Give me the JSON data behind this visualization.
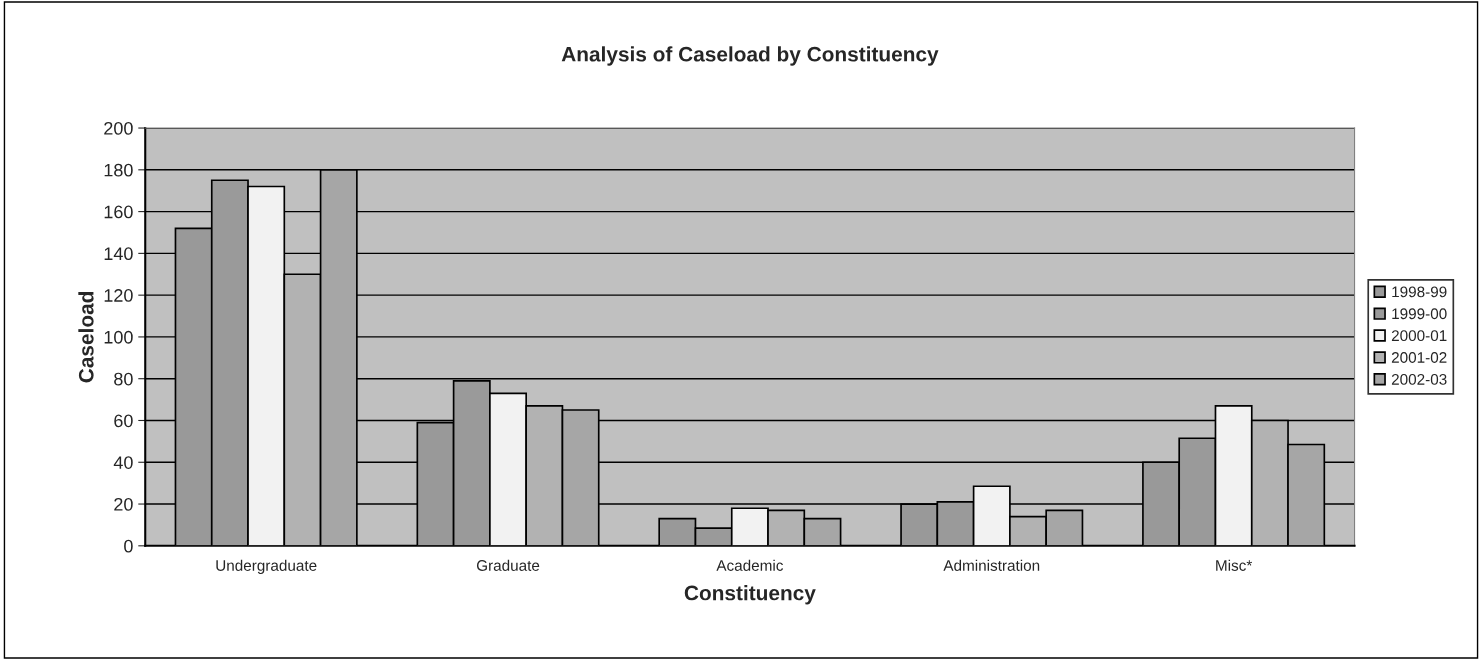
{
  "chart_data": {
    "type": "bar",
    "title": "Analysis of Caseload by Constituency",
    "xlabel": "Constituency",
    "ylabel": "Caseload",
    "categories": [
      "Undergraduate",
      "Graduate",
      "Academic",
      "Administration",
      "Misc*"
    ],
    "series": [
      {
        "name": "1998-99",
        "color": "#999999",
        "values": [
          152,
          59,
          13,
          20,
          40
        ]
      },
      {
        "name": "1999-00",
        "color": "#9a9a9a",
        "values": [
          175,
          79,
          8.5,
          21,
          51.5
        ]
      },
      {
        "name": "2000-01",
        "color": "#f2f2f2",
        "values": [
          172,
          73,
          18,
          28.5,
          67
        ]
      },
      {
        "name": "2001-02",
        "color": "#b2b2b2",
        "values": [
          130,
          67,
          17,
          14,
          60
        ]
      },
      {
        "name": "2002-03",
        "color": "#a6a6a6",
        "values": [
          180,
          65,
          13,
          17,
          48.5
        ]
      }
    ],
    "ylim": [
      0,
      200
    ],
    "yticks": [
      0,
      20,
      40,
      60,
      80,
      100,
      120,
      140,
      160,
      180,
      200
    ],
    "grid": "y",
    "legend": "right"
  }
}
